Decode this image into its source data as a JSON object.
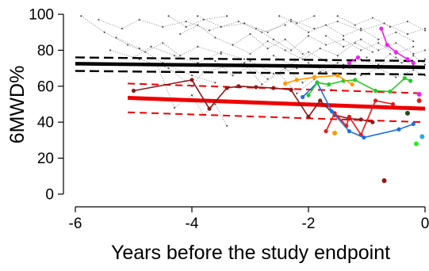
{
  "chart_data": {
    "type": "line",
    "title": "",
    "xlabel": "Years before the study endpoint",
    "ylabel": "6MWD%",
    "xlim": [
      -6,
      0
    ],
    "ylim": [
      0,
      100
    ],
    "x_ticks": [
      -6,
      -4,
      -2,
      0
    ],
    "x_tick_labels": [
      "-6",
      "-4",
      "-2",
      "0"
    ],
    "y_ticks": [
      0,
      20,
      40,
      60,
      80,
      100
    ],
    "y_tick_labels": [
      "0",
      "20",
      "40",
      "60",
      "80",
      "100"
    ],
    "grid": false,
    "legend": "none",
    "reference_lines": [
      {
        "group": "black",
        "role": "fit",
        "color": "#000000",
        "style": "solid",
        "points": [
          [
            -6,
            72.5
          ],
          [
            0,
            70.5
          ]
        ]
      },
      {
        "group": "black",
        "role": "upper",
        "color": "#000000",
        "style": "dashed",
        "points": [
          [
            -6,
            76
          ],
          [
            0,
            74
          ]
        ]
      },
      {
        "group": "black",
        "role": "lower",
        "color": "#000000",
        "style": "dashed",
        "points": [
          [
            -6,
            68.5
          ],
          [
            0,
            66.5
          ]
        ]
      },
      {
        "group": "red",
        "role": "fit",
        "color": "#ee0000",
        "style": "solid",
        "points": [
          [
            -5.1,
            53.5
          ],
          [
            0,
            47.5
          ]
        ]
      },
      {
        "group": "red",
        "role": "upper",
        "color": "#ee0000",
        "style": "dashed",
        "points": [
          [
            -5.1,
            61.5
          ],
          [
            0,
            56
          ]
        ]
      },
      {
        "group": "red",
        "role": "lower",
        "color": "#ee0000",
        "style": "dashed",
        "points": [
          [
            -5.1,
            45.5
          ],
          [
            0,
            40
          ]
        ]
      }
    ],
    "series": [
      {
        "color": "#8b1a1a",
        "points": [
          [
            -5.0,
            57.5
          ],
          [
            -4.0,
            63.5
          ],
          [
            -3.7,
            47.5
          ],
          [
            -3.4,
            59
          ],
          [
            -3.2,
            60
          ],
          [
            -2.9,
            59.5
          ],
          [
            -2.6,
            59
          ],
          [
            -2.3,
            58
          ],
          [
            -2.0,
            43
          ],
          [
            -1.8,
            52
          ],
          [
            -1.55,
            44
          ],
          [
            -1.3,
            42
          ],
          [
            -1.1,
            41.5
          ],
          [
            -0.9,
            40
          ]
        ]
      },
      {
        "color": "#e81818",
        "points": [
          [
            -1.7,
            35
          ],
          [
            -1.55,
            45
          ],
          [
            -1.35,
            38
          ],
          [
            -1.3,
            43
          ],
          [
            -1.1,
            33
          ],
          [
            -0.85,
            52
          ],
          [
            -0.55,
            50
          ]
        ]
      },
      {
        "color": "#1e6fe0",
        "points": [
          [
            -2.1,
            54
          ],
          [
            -1.85,
            62
          ],
          [
            -1.6,
            46
          ],
          [
            -1.3,
            35
          ],
          [
            -1.05,
            31.5
          ],
          [
            -0.45,
            36
          ],
          [
            -0.2,
            39
          ]
        ]
      },
      {
        "color": "#22cc22",
        "points": [
          [
            -2.0,
            55
          ],
          [
            -1.85,
            62
          ],
          [
            -1.65,
            61
          ],
          [
            -1.4,
            63
          ],
          [
            -1.2,
            63.5
          ],
          [
            -0.85,
            57.5
          ],
          [
            -0.6,
            57
          ],
          [
            -0.35,
            64.5
          ],
          [
            -0.25,
            63
          ]
        ]
      },
      {
        "color": "#ff9900",
        "points": [
          [
            -2.4,
            61.5
          ],
          [
            -2.2,
            63.5
          ],
          [
            -1.9,
            65
          ],
          [
            -1.5,
            66
          ],
          [
            -1.25,
            61
          ]
        ]
      },
      {
        "color": "#ee22ee",
        "points": [
          [
            -0.75,
            92
          ],
          [
            -0.65,
            83
          ],
          [
            -0.5,
            79
          ],
          [
            -0.3,
            75
          ],
          [
            -0.2,
            73
          ]
        ]
      },
      {
        "color": "#ee22ee",
        "points": [
          [
            -1.3,
            73
          ],
          [
            -1.15,
            76
          ]
        ]
      }
    ],
    "isolated_points": [
      {
        "color": "#8b1a1a",
        "x": -0.7,
        "y": 7.5
      },
      {
        "color": "#ff9900",
        "x": -1.55,
        "y": 34
      },
      {
        "color": "#22ee22",
        "x": -0.15,
        "y": 28
      },
      {
        "color": "#22aaee",
        "x": -0.05,
        "y": 32
      },
      {
        "color": "#1b4d1b",
        "x": -0.3,
        "y": 45
      },
      {
        "color": "#e81818",
        "x": -0.1,
        "y": 52
      },
      {
        "color": "#ee22ee",
        "x": -0.1,
        "y": 55.5
      }
    ],
    "background_trajectories": {
      "color": "#999999",
      "style": "dotted",
      "lines": [
        [
          [
            -5.9,
            99
          ],
          [
            -5.5,
            90
          ],
          [
            -5.1,
            83
          ],
          [
            -4.8,
            79
          ],
          [
            -4.5,
            84
          ],
          [
            -4.2,
            77
          ],
          [
            -3.9,
            82
          ],
          [
            -3.5,
            78
          ]
        ],
        [
          [
            -5.6,
            97
          ],
          [
            -5.2,
            92
          ],
          [
            -4.9,
            97
          ],
          [
            -4.5,
            93
          ],
          [
            -4.1,
            96
          ],
          [
            -3.7,
            91
          ],
          [
            -3.2,
            96
          ],
          [
            -2.8,
            90
          ],
          [
            -2.4,
            94
          ]
        ],
        [
          [
            -5.3,
            87
          ],
          [
            -4.9,
            81
          ],
          [
            -4.5,
            73
          ],
          [
            -4.0,
            66
          ],
          [
            -3.6,
            62
          ]
        ],
        [
          [
            -4.9,
            75
          ],
          [
            -4.4,
            70
          ],
          [
            -4.0,
            60
          ],
          [
            -3.8,
            68
          ],
          [
            -3.4,
            71
          ],
          [
            -3.0,
            74
          ],
          [
            -2.6,
            67
          ],
          [
            -2.2,
            70
          ]
        ],
        [
          [
            -4.6,
            72
          ],
          [
            -4.3,
            48
          ],
          [
            -4.0,
            55
          ],
          [
            -3.8,
            44
          ],
          [
            -3.6,
            50
          ],
          [
            -3.4,
            38
          ]
        ],
        [
          [
            -4.2,
            89
          ],
          [
            -3.9,
            94
          ],
          [
            -3.6,
            87
          ],
          [
            -3.3,
            83
          ],
          [
            -3.0,
            89
          ],
          [
            -2.7,
            81
          ],
          [
            -2.4,
            86
          ],
          [
            -2.1,
            78
          ]
        ],
        [
          [
            -3.9,
            99
          ],
          [
            -3.5,
            93
          ],
          [
            -3.1,
            95
          ],
          [
            -2.7,
            90
          ],
          [
            -2.3,
            97
          ],
          [
            -1.9,
            92
          ],
          [
            -1.5,
            96
          ],
          [
            -1.1,
            91
          ],
          [
            -0.7,
            95
          ],
          [
            -0.3,
            89
          ],
          [
            0,
            92
          ]
        ],
        [
          [
            -3.6,
            74
          ],
          [
            -3.3,
            66
          ],
          [
            -3.0,
            71
          ],
          [
            -2.7,
            64
          ],
          [
            -2.4,
            70
          ],
          [
            -2.1,
            62
          ],
          [
            -1.8,
            68
          ],
          [
            -1.5,
            73
          ]
        ],
        [
          [
            -3.3,
            83
          ],
          [
            -3.0,
            78
          ],
          [
            -2.7,
            85
          ],
          [
            -2.4,
            80
          ],
          [
            -2.1,
            75
          ],
          [
            -1.8,
            81
          ],
          [
            -1.5,
            77
          ],
          [
            -1.2,
            84
          ],
          [
            -0.9,
            79
          ]
        ],
        [
          [
            -3.1,
            73
          ],
          [
            -2.8,
            61
          ],
          [
            -2.5,
            67
          ],
          [
            -2.2,
            56
          ],
          [
            -1.9,
            64
          ],
          [
            -1.6,
            58
          ]
        ],
        [
          [
            -2.9,
            92
          ],
          [
            -2.6,
            86
          ],
          [
            -2.3,
            80
          ],
          [
            -2.0,
            88
          ],
          [
            -1.7,
            83
          ],
          [
            -1.4,
            86
          ],
          [
            -1.1,
            80
          ],
          [
            -0.8,
            84
          ],
          [
            -0.5,
            78
          ],
          [
            -0.2,
            82
          ]
        ],
        [
          [
            -2.6,
            77
          ],
          [
            -2.3,
            72
          ],
          [
            -2.0,
            79
          ],
          [
            -1.7,
            74
          ],
          [
            -1.4,
            70
          ],
          [
            -1.1,
            75
          ],
          [
            -0.8,
            71
          ],
          [
            -0.5,
            76
          ],
          [
            -0.2,
            72
          ],
          [
            0,
            75
          ]
        ],
        [
          [
            -2.3,
            96
          ],
          [
            -2.0,
            90
          ],
          [
            -1.7,
            94
          ],
          [
            -1.4,
            88
          ],
          [
            -1.1,
            92
          ],
          [
            -0.8,
            86
          ],
          [
            -0.5,
            90
          ],
          [
            -0.2,
            85
          ]
        ],
        [
          [
            -2.0,
            73
          ],
          [
            -1.7,
            68
          ],
          [
            -1.4,
            72
          ],
          [
            -1.1,
            66
          ],
          [
            -0.8,
            70
          ],
          [
            -0.5,
            65
          ],
          [
            -0.2,
            69
          ],
          [
            0,
            66
          ]
        ],
        [
          [
            -1.7,
            88
          ],
          [
            -1.4,
            82
          ],
          [
            -1.1,
            86
          ],
          [
            -0.8,
            80
          ],
          [
            -0.5,
            84
          ],
          [
            -0.2,
            78
          ],
          [
            0,
            80
          ]
        ],
        [
          [
            -1.5,
            99
          ],
          [
            -1.2,
            94
          ],
          [
            -0.9,
            98
          ],
          [
            -0.6,
            93
          ],
          [
            -0.3,
            96
          ],
          [
            0,
            91
          ]
        ],
        [
          [
            -1.0,
            76
          ],
          [
            -0.8,
            72
          ],
          [
            -0.6,
            78
          ],
          [
            -0.4,
            73
          ],
          [
            -0.2,
            77
          ],
          [
            0,
            72
          ]
        ],
        [
          [
            -5.4,
            80
          ],
          [
            -5.0,
            76
          ],
          [
            -4.7,
            82
          ],
          [
            -4.3,
            77
          ],
          [
            -3.9,
            73
          ],
          [
            -3.5,
            79
          ],
          [
            -3.1,
            75
          ]
        ],
        [
          [
            -4.4,
            99
          ],
          [
            -4.1,
            93
          ],
          [
            -3.8,
            97
          ],
          [
            -3.4,
            99
          ]
        ],
        [
          [
            -2.5,
            99
          ],
          [
            -2.2,
            95
          ],
          [
            -1.9,
            99
          ]
        ]
      ]
    }
  }
}
